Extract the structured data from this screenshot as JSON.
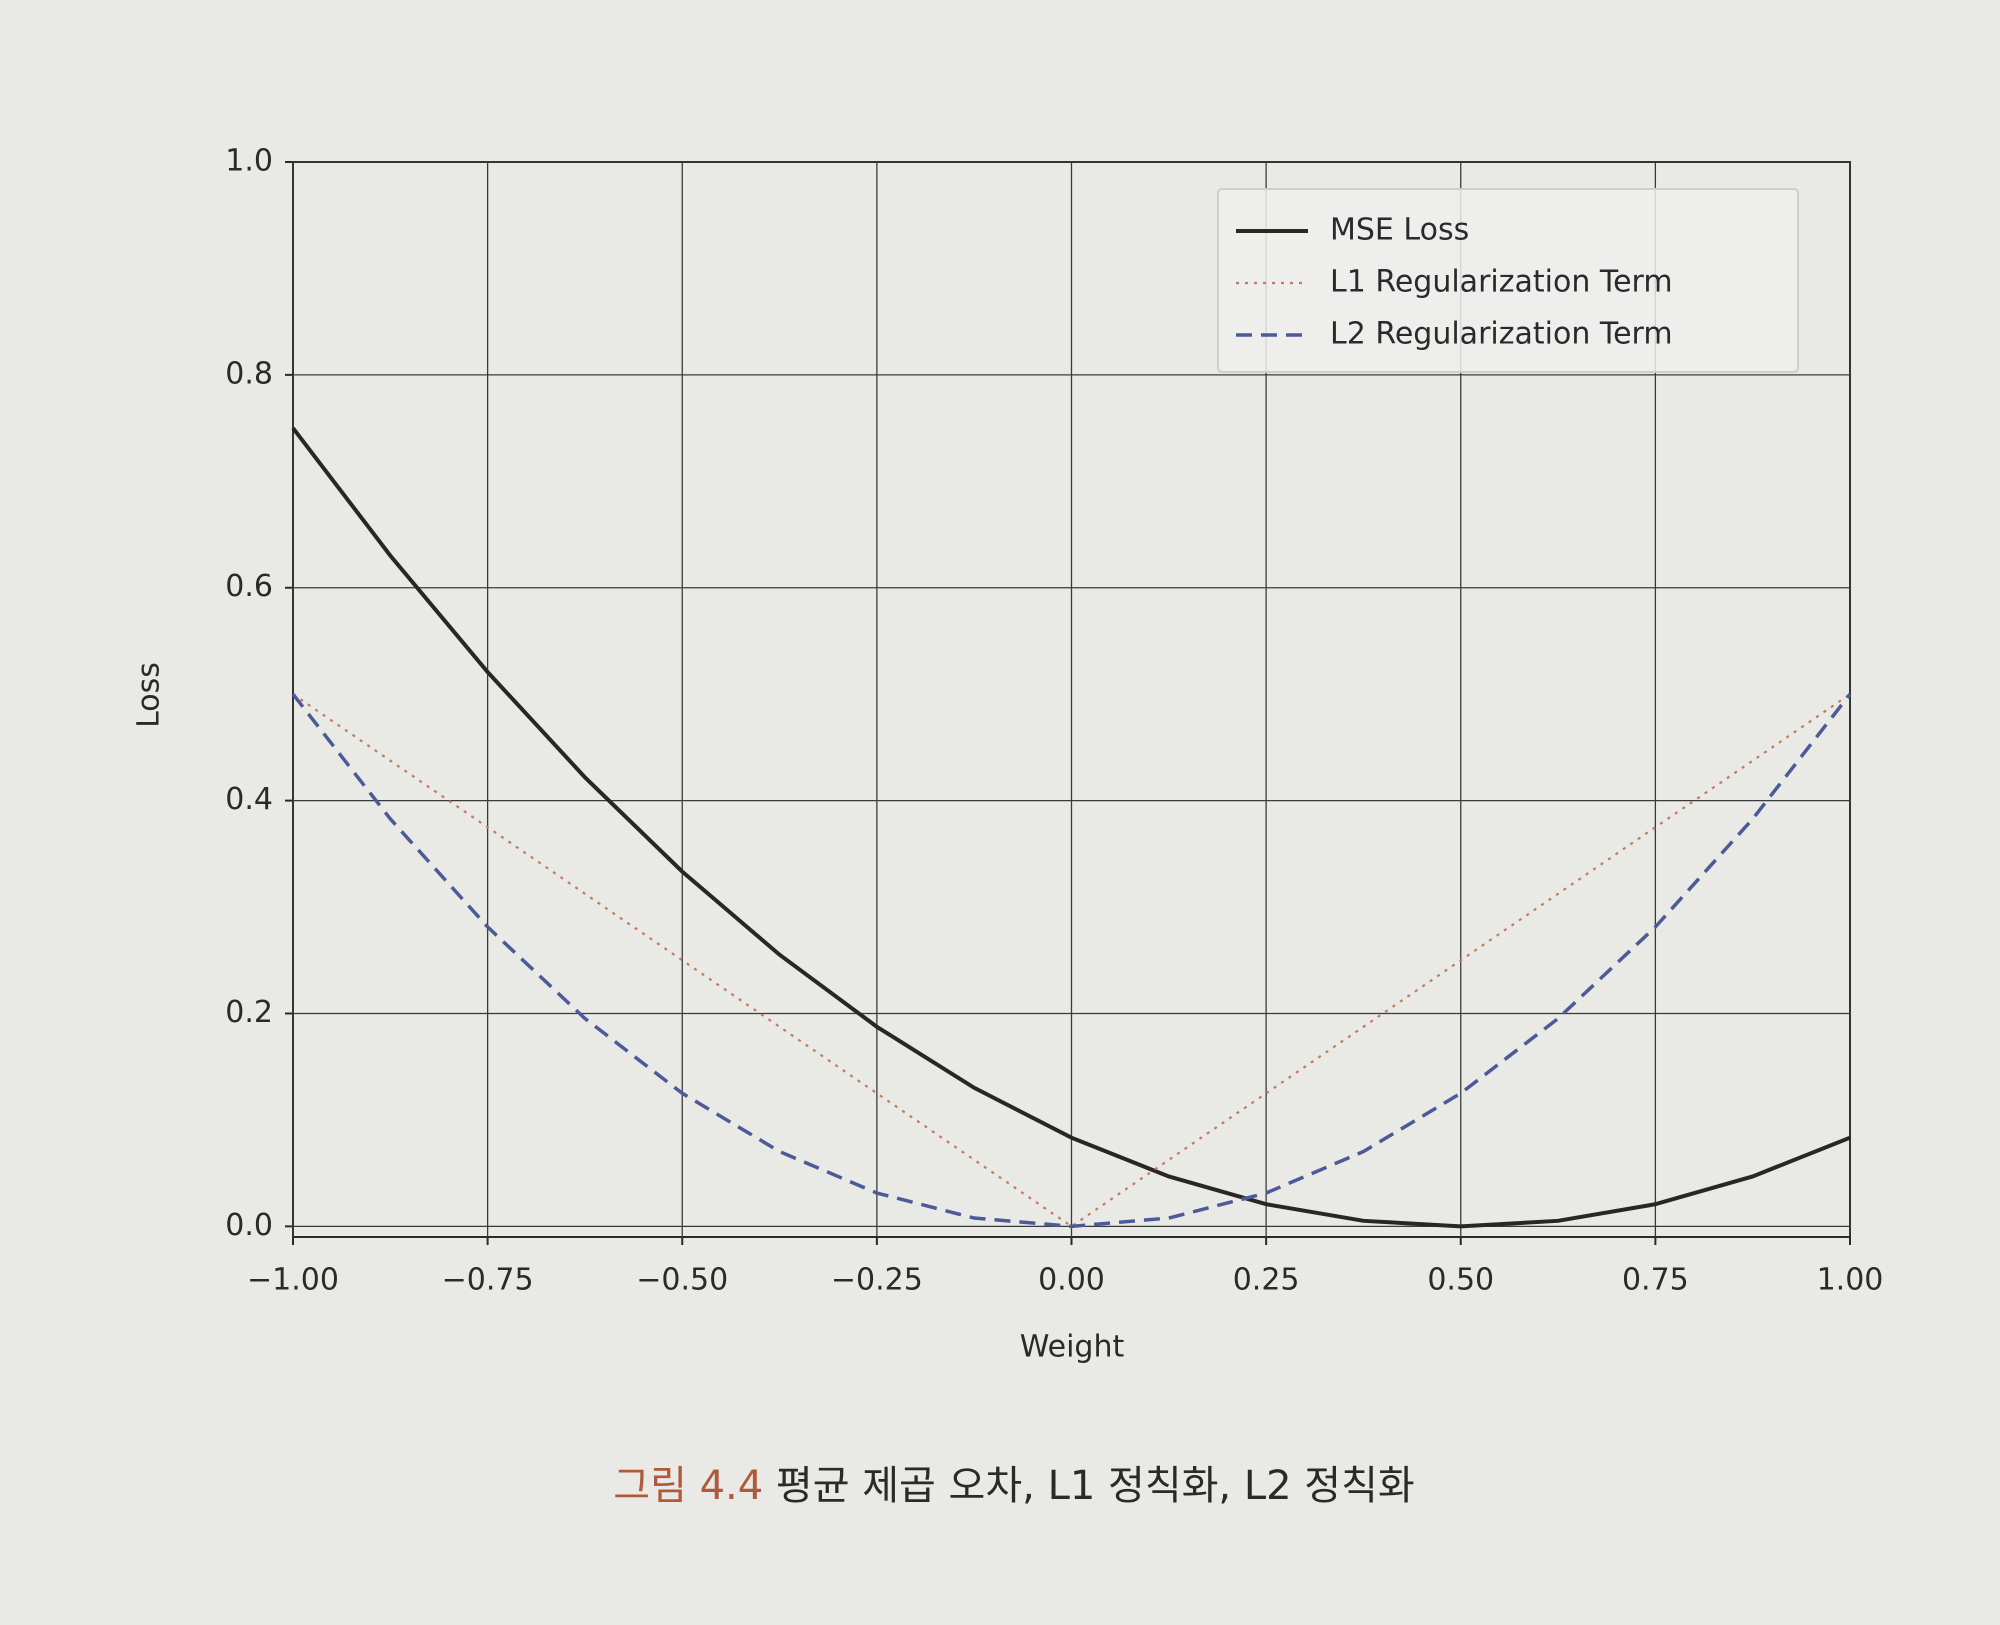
{
  "chart_data": {
    "type": "line",
    "x": [
      -1,
      -0.875,
      -0.75,
      -0.625,
      -0.5,
      -0.375,
      -0.25,
      -0.125,
      0,
      0.125,
      0.25,
      0.375,
      0.5,
      0.625,
      0.75,
      0.875,
      1
    ],
    "series": [
      {
        "name": "MSE Loss",
        "color": "#2a2624",
        "dash": "solid",
        "values": [
          0.75,
          0.6302,
          0.5208,
          0.4219,
          0.3333,
          0.2552,
          0.1875,
          0.1302,
          0.0833,
          0.0469,
          0.0208,
          0.0052,
          0,
          0.0052,
          0.0208,
          0.0469,
          0.0833
        ]
      },
      {
        "name": "L1 Regularization Term",
        "color": "#c47a5e",
        "dash": "dotted",
        "values": [
          0.5,
          0.4375,
          0.375,
          0.3125,
          0.25,
          0.1875,
          0.125,
          0.0625,
          0,
          0.0625,
          0.125,
          0.1875,
          0.25,
          0.3125,
          0.375,
          0.4375,
          0.5
        ]
      },
      {
        "name": "L2 Regularization Term",
        "color": "#4c5a98",
        "dash": "dashed",
        "values": [
          0.5,
          0.3828,
          0.2813,
          0.1953,
          0.125,
          0.0703,
          0.0313,
          0.0078,
          0,
          0.0078,
          0.0313,
          0.0703,
          0.125,
          0.1953,
          0.2813,
          0.3828,
          0.5
        ]
      }
    ],
    "xlabel": "Weight",
    "ylabel": "Loss",
    "xlim": [
      -1,
      1
    ],
    "ylim": [
      -0.01,
      1
    ],
    "xticks": [
      {
        "value": -1,
        "label": "−1.00"
      },
      {
        "value": -0.75,
        "label": "−0.75"
      },
      {
        "value": -0.5,
        "label": "−0.50"
      },
      {
        "value": -0.25,
        "label": "−0.25"
      },
      {
        "value": 0,
        "label": "0.00"
      },
      {
        "value": 0.25,
        "label": "0.25"
      },
      {
        "value": 0.5,
        "label": "0.50"
      },
      {
        "value": 0.75,
        "label": "0.75"
      },
      {
        "value": 1,
        "label": "1.00"
      }
    ],
    "yticks": [
      {
        "value": 0,
        "label": "0.0"
      },
      0.2,
      0.4,
      0.6,
      0.8,
      {
        "value": 1,
        "label": "1.0"
      }
    ],
    "grid": true,
    "legend": "upper right",
    "caption_label": "그림 4.4",
    "caption": "평균 제곱 오차, L1 정칙화, L2 정칙화"
  }
}
